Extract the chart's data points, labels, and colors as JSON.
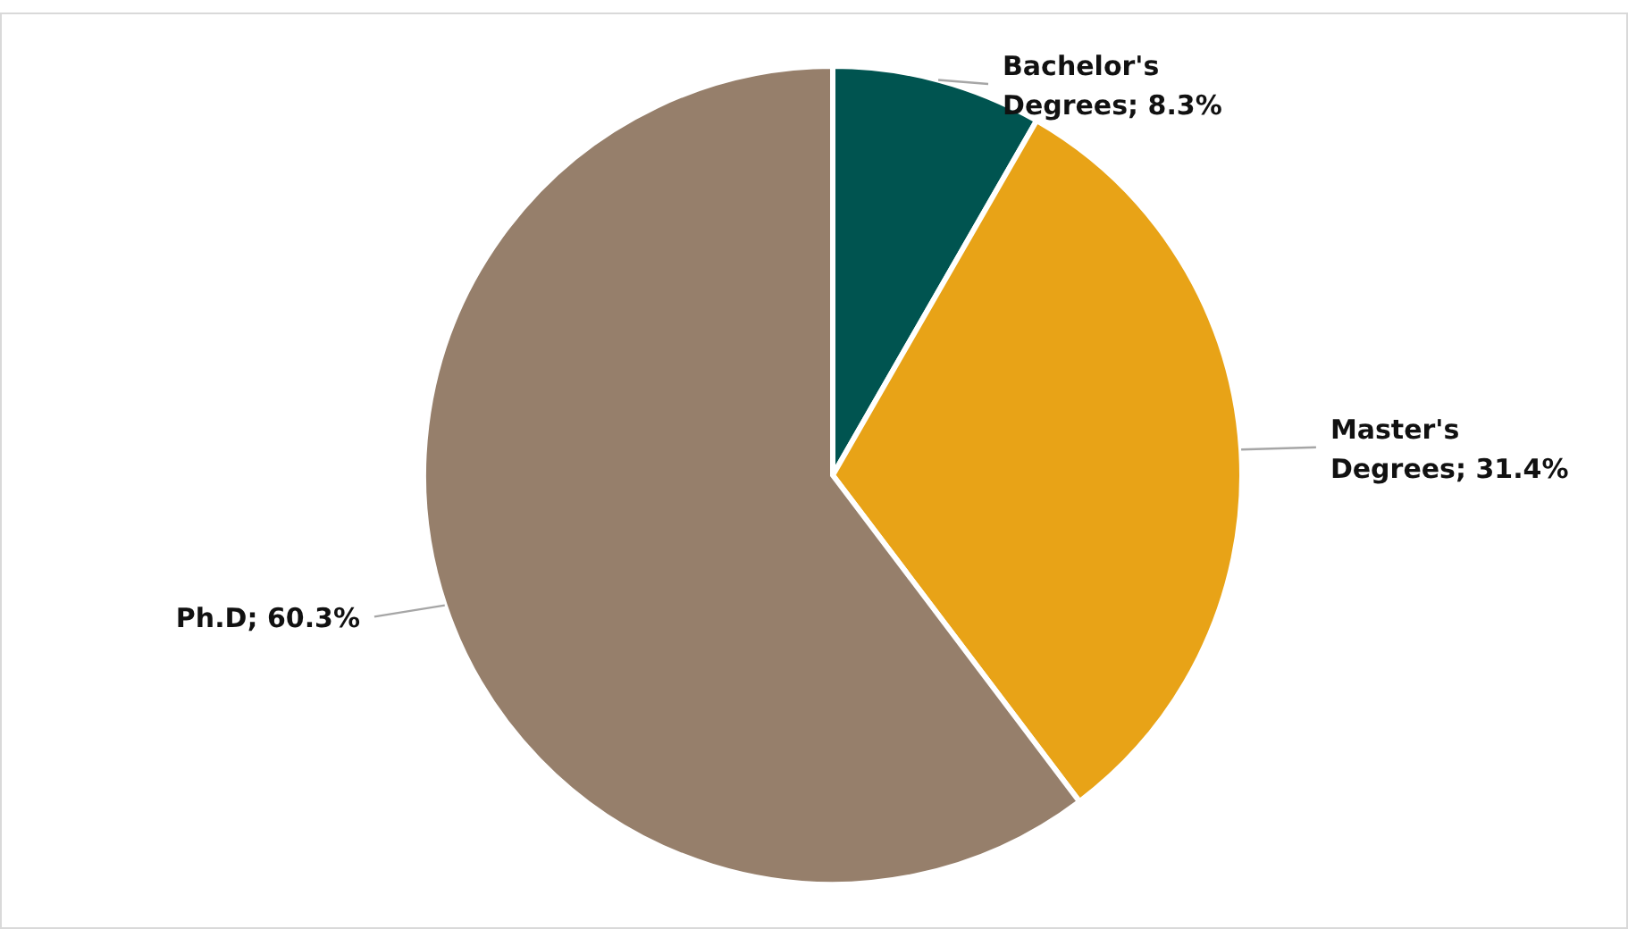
{
  "chart_data": {
    "type": "pie",
    "categories": [
      "Bachelor's Degrees",
      "Master's Degrees",
      "Ph.D"
    ],
    "values": [
      8.3,
      31.4,
      60.3
    ],
    "value_labels": [
      "; 8.3%",
      "; 31.4%",
      "; 60.3%"
    ],
    "colors": [
      "#005450",
      "#e8a317",
      "#967f6b"
    ],
    "legend": false
  }
}
